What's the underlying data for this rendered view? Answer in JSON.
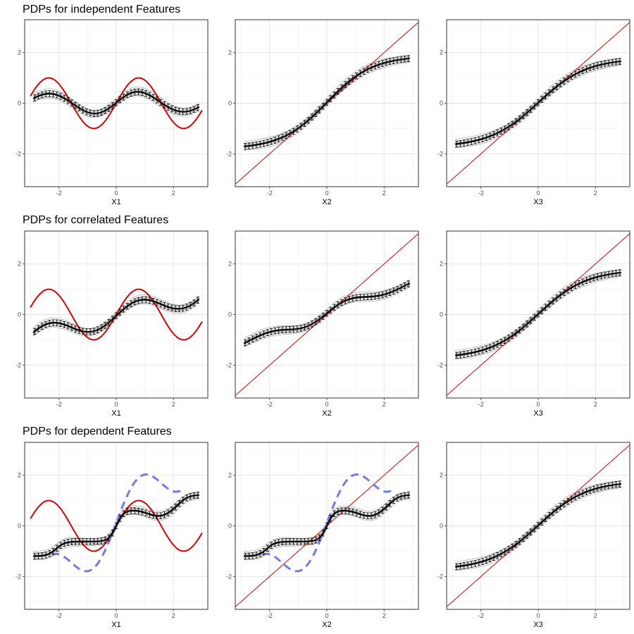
{
  "figure": {
    "row_titles": [
      "PDPs for independent Features",
      "PDPs for correlated Features",
      "PDPs for dependent Features"
    ]
  },
  "chart_data": [
    {
      "type": "line",
      "row": 0,
      "col": 0,
      "title": "PDPs for independent Features",
      "xlabel": "X1",
      "ylabel": "",
      "xlim": [
        -3.2,
        3.2
      ],
      "ylim": [
        -3.3,
        3.3
      ],
      "x_ticks": [
        -2,
        0,
        2
      ],
      "y_ticks": [
        -2,
        0,
        2
      ],
      "grid": true,
      "colors": {
        "truth": "#dd0000",
        "dependent": "#7777ee"
      },
      "truth": "sin",
      "pdp": "i1",
      "dependent_curve": false
    },
    {
      "type": "line",
      "row": 0,
      "col": 1,
      "title": "",
      "xlabel": "X2",
      "ylabel": "",
      "xlim": [
        -3.2,
        3.2
      ],
      "ylim": [
        -3.3,
        3.3
      ],
      "x_ticks": [
        -2,
        0,
        2
      ],
      "y_ticks": [
        -2,
        0,
        2
      ],
      "grid": true,
      "colors": {
        "truth": "#dd0000",
        "dependent": "#7777ee"
      },
      "truth": "identity",
      "pdp": "s2",
      "dependent_curve": false
    },
    {
      "type": "line",
      "row": 0,
      "col": 2,
      "title": "",
      "xlabel": "X3",
      "ylabel": "",
      "xlim": [
        -3.2,
        3.2
      ],
      "ylim": [
        -3.3,
        3.3
      ],
      "x_ticks": [
        -2,
        0,
        2
      ],
      "y_ticks": [
        -2,
        0,
        2
      ],
      "grid": true,
      "colors": {
        "truth": "#dd0000",
        "dependent": "#7777ee"
      },
      "truth": "identity",
      "pdp": "s3",
      "dependent_curve": false
    },
    {
      "type": "line",
      "row": 1,
      "col": 0,
      "title": "PDPs for correlated Features",
      "xlabel": "X1",
      "ylabel": "",
      "xlim": [
        -3.2,
        3.2
      ],
      "ylim": [
        -3.3,
        3.3
      ],
      "x_ticks": [
        -2,
        0,
        2
      ],
      "y_ticks": [
        -2,
        0,
        2
      ],
      "grid": true,
      "colors": {
        "truth": "#dd0000",
        "dependent": "#7777ee"
      },
      "truth": "sin",
      "pdp": "c1",
      "dependent_curve": false
    },
    {
      "type": "line",
      "row": 1,
      "col": 1,
      "title": "",
      "xlabel": "X2",
      "ylabel": "",
      "xlim": [
        -3.2,
        3.2
      ],
      "ylim": [
        -3.3,
        3.3
      ],
      "x_ticks": [
        -2,
        0,
        2
      ],
      "y_ticks": [
        -2,
        0,
        2
      ],
      "grid": true,
      "colors": {
        "truth": "#dd0000",
        "dependent": "#7777ee"
      },
      "truth": "identity",
      "pdp": "c2",
      "dependent_curve": false
    },
    {
      "type": "line",
      "row": 1,
      "col": 2,
      "title": "",
      "xlabel": "X3",
      "ylabel": "",
      "xlim": [
        -3.2,
        3.2
      ],
      "ylim": [
        -3.3,
        3.3
      ],
      "x_ticks": [
        -2,
        0,
        2
      ],
      "y_ticks": [
        -2,
        0,
        2
      ],
      "grid": true,
      "colors": {
        "truth": "#dd0000",
        "dependent": "#7777ee"
      },
      "truth": "identity",
      "pdp": "s3",
      "dependent_curve": false
    },
    {
      "type": "line",
      "row": 2,
      "col": 0,
      "title": "PDPs for dependent Features",
      "xlabel": "X1",
      "ylabel": "",
      "xlim": [
        -3.2,
        3.2
      ],
      "ylim": [
        -3.3,
        3.3
      ],
      "x_ticks": [
        -2,
        0,
        2
      ],
      "y_ticks": [
        -2,
        0,
        2
      ],
      "grid": true,
      "colors": {
        "truth": "#dd0000",
        "dependent": "#7777ee"
      },
      "truth": "sin",
      "pdp": "d1",
      "dependent_curve": true
    },
    {
      "type": "line",
      "row": 2,
      "col": 1,
      "title": "",
      "xlabel": "X2",
      "ylabel": "",
      "xlim": [
        -3.2,
        3.2
      ],
      "ylim": [
        -3.3,
        3.3
      ],
      "x_ticks": [
        -2,
        0,
        2
      ],
      "y_ticks": [
        -2,
        0,
        2
      ],
      "grid": true,
      "colors": {
        "truth": "#dd0000",
        "dependent": "#7777ee"
      },
      "truth": "identity",
      "pdp": "d1",
      "dependent_curve": true
    },
    {
      "type": "line",
      "row": 2,
      "col": 2,
      "title": "",
      "xlabel": "X3",
      "ylabel": "",
      "xlim": [
        -3.2,
        3.2
      ],
      "ylim": [
        -3.3,
        3.3
      ],
      "x_ticks": [
        -2,
        0,
        2
      ],
      "y_ticks": [
        -2,
        0,
        2
      ],
      "grid": true,
      "colors": {
        "truth": "#dd0000",
        "dependent": "#7777ee"
      },
      "truth": "identity",
      "pdp": "s3",
      "dependent_curve": false
    }
  ]
}
